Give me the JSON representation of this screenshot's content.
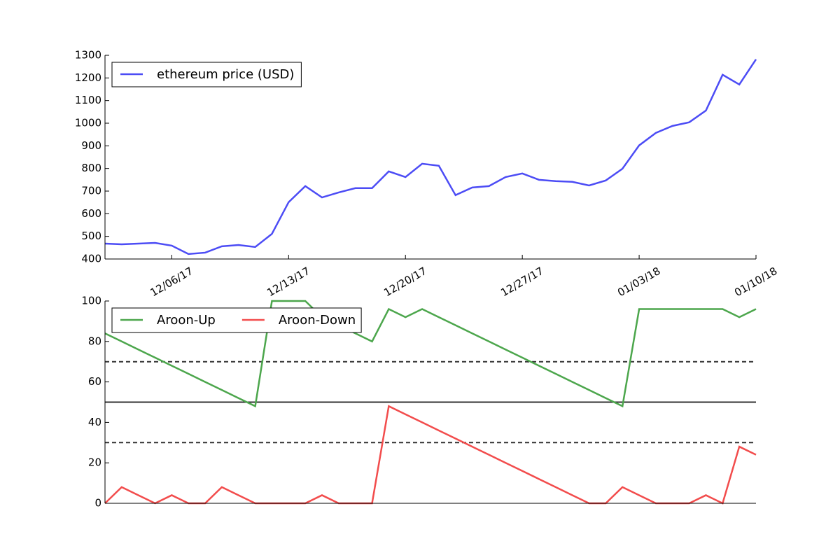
{
  "chart_data": [
    {
      "type": "line",
      "x": [
        "12/02/17",
        "12/03/17",
        "12/04/17",
        "12/05/17",
        "12/06/17",
        "12/07/17",
        "12/08/17",
        "12/09/17",
        "12/10/17",
        "12/11/17",
        "12/12/17",
        "12/13/17",
        "12/14/17",
        "12/15/17",
        "12/16/17",
        "12/17/17",
        "12/18/17",
        "12/19/17",
        "12/20/17",
        "12/21/17",
        "12/22/17",
        "12/23/17",
        "12/24/17",
        "12/25/17",
        "12/26/17",
        "12/27/17",
        "12/28/17",
        "12/29/17",
        "12/30/17",
        "12/31/17",
        "01/01/18",
        "01/02/18",
        "01/03/18",
        "01/04/18",
        "01/05/18",
        "01/06/18",
        "01/07/18",
        "01/08/18",
        "01/09/18",
        "01/10/18"
      ],
      "xticks": [
        "12/06/17",
        "12/13/17",
        "12/20/17",
        "12/27/17",
        "01/03/18",
        "01/10/18"
      ],
      "ylim": [
        400,
        1300
      ],
      "yticks": [
        400,
        500,
        600,
        700,
        800,
        900,
        1000,
        1100,
        1200,
        1300
      ],
      "legend": "upper left",
      "series": [
        {
          "name": "ethereum price (USD)",
          "color": "#4c4cf5",
          "values": [
            468,
            465,
            468,
            471,
            459,
            422,
            428,
            456,
            462,
            453,
            511,
            651,
            722,
            672,
            694,
            713,
            713,
            787,
            762,
            821,
            812,
            682,
            716,
            722,
            762,
            778,
            750,
            744,
            741,
            725,
            747,
            799,
            902,
            957,
            988,
            1004,
            1056,
            1214,
            1171,
            1282
          ]
        }
      ]
    },
    {
      "type": "line",
      "x": [
        "12/02/17",
        "12/03/17",
        "12/04/17",
        "12/05/17",
        "12/06/17",
        "12/07/17",
        "12/08/17",
        "12/09/17",
        "12/10/17",
        "12/11/17",
        "12/12/17",
        "12/13/17",
        "12/14/17",
        "12/15/17",
        "12/16/17",
        "12/17/17",
        "12/18/17",
        "12/19/17",
        "12/20/17",
        "12/21/17",
        "12/22/17",
        "12/23/17",
        "12/24/17",
        "12/25/17",
        "12/26/17",
        "12/27/17",
        "12/28/17",
        "12/29/17",
        "12/30/17",
        "12/31/17",
        "01/01/18",
        "01/02/18",
        "01/03/18",
        "01/04/18",
        "01/05/18",
        "01/06/18",
        "01/07/18",
        "01/08/18",
        "01/09/18",
        "01/10/18"
      ],
      "ylim": [
        0,
        100
      ],
      "yticks": [
        0,
        20,
        40,
        60,
        80,
        100
      ],
      "legend": "upper left",
      "legend_columns": 2,
      "hlines": [
        {
          "value": 70,
          "style": "dashed"
        },
        {
          "value": 50,
          "style": "solid"
        },
        {
          "value": 30,
          "style": "dashed"
        }
      ],
      "hline_color": "#333333",
      "series": [
        {
          "name": "Aroon-Up",
          "color": "#4ca64c",
          "values": [
            84,
            80,
            76,
            72,
            68,
            64,
            60,
            56,
            52,
            48,
            100,
            100,
            100,
            92,
            88,
            84,
            80,
            96,
            92,
            96,
            92,
            88,
            84,
            80,
            76,
            72,
            68,
            64,
            60,
            56,
            52,
            48,
            96,
            96,
            96,
            96,
            96,
            96,
            92,
            96
          ]
        },
        {
          "name": "Aroon-Down",
          "color": "#f24c4c",
          "values": [
            0,
            8,
            4,
            0,
            4,
            0,
            0,
            8,
            4,
            0,
            0,
            0,
            0,
            4,
            0,
            0,
            0,
            48,
            44,
            40,
            36,
            32,
            28,
            24,
            20,
            16,
            12,
            8,
            4,
            0,
            0,
            8,
            4,
            0,
            0,
            0,
            4,
            0,
            28,
            24
          ]
        }
      ]
    }
  ]
}
